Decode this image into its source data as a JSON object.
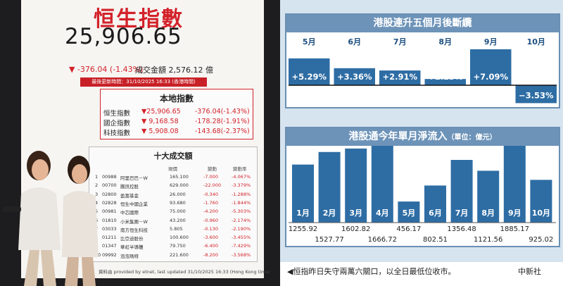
{
  "photo": {
    "board": {
      "title": "恒生指數",
      "value": "25,906.65",
      "change": "▼ -376.04 (-1.43%)",
      "turnover": "成交金額 2,576.12 億",
      "updated": "最後更新時間：31/10/2025 16:33 (香港時間)",
      "local_title": "本地指數",
      "local": [
        {
          "name": "恒生指數",
          "value": "▼25,906.65",
          "change": "-376.04(-1.43%)"
        },
        {
          "name": "國企指數",
          "value": "▼ 9,168.58",
          "change": "-178.28(-1.91%)"
        },
        {
          "name": "科技指數",
          "value": "▼ 5,908.08",
          "change": "-143.68(-2.37%)"
        }
      ],
      "top10_title": "十大成交額",
      "top10_cols": [
        "現價",
        "變動",
        "變動率"
      ],
      "top10": [
        {
          "no": "1",
          "code": "00988",
          "name": "阿里巴巴－W",
          "price": "165.100",
          "chg": "-7.000",
          "pct": "-4.067%"
        },
        {
          "no": "2",
          "code": "00700",
          "name": "騰訊控股",
          "price": "629.000",
          "chg": "-22.000",
          "pct": "-3.379%"
        },
        {
          "no": "3",
          "code": "02800",
          "name": "盈富基金",
          "price": "26.000",
          "chg": "-0.340",
          "pct": "-1.288%"
        },
        {
          "no": "4",
          "code": "02828",
          "name": "恒生中國企業",
          "price": "93.680",
          "chg": "-1.760",
          "pct": "-1.844%"
        },
        {
          "no": "5",
          "code": "00981",
          "name": "中芯國際",
          "price": "75.000",
          "chg": "-4.200",
          "pct": "-5.303%"
        },
        {
          "no": "6",
          "code": "01810",
          "name": "小米集團－W",
          "price": "43.200",
          "chg": "-0.960",
          "pct": "-2.174%"
        },
        {
          "no": "7",
          "code": "03033",
          "name": "南方恒生科技",
          "price": "5.805",
          "chg": "-0.130",
          "pct": "-2.190%"
        },
        {
          "no": "8",
          "code": "01211",
          "name": "比亞迪股份",
          "price": "100.600",
          "chg": "-3.600",
          "pct": "-3.455%"
        },
        {
          "no": "9",
          "code": "01347",
          "name": "華虹半導體",
          "price": "79.750",
          "chg": "-6.400",
          "pct": "-7.429%"
        },
        {
          "no": "10",
          "code": "09992",
          "name": "泡泡瑪特",
          "price": "221.600",
          "chg": "-8.200",
          "pct": "-3.568%"
        }
      ],
      "credit": "資料由 provided by etnet, last updated 31/10/2025 16:33 (Hong Kong time)"
    }
  },
  "colors": {
    "bar": "#2e6da4",
    "title_bg": "#6d93b8",
    "panel_bg": "#d6e4ef",
    "board_red": "#d3222a"
  },
  "chart_data": [
    {
      "type": "bar",
      "title": "港股連升五個月後斷纜",
      "categories": [
        "5月",
        "6月",
        "7月",
        "8月",
        "9月",
        "10月"
      ],
      "values": [
        5.29,
        3.36,
        2.91,
        1.23,
        7.09,
        -3.53
      ],
      "labels": [
        "+5.29%",
        "+3.36%",
        "+2.91%",
        "+1.23%",
        "+7.09%",
        "−3.53%"
      ],
      "unit": "%",
      "grid": false
    },
    {
      "type": "bar",
      "title": "港股通今年單月淨流入",
      "title_unit": "（單位：億元）",
      "categories": [
        "1月",
        "2月",
        "3月",
        "4月",
        "5月",
        "6月",
        "7月",
        "8月",
        "9月",
        "10月"
      ],
      "values": [
        1255.92,
        1527.77,
        1602.82,
        1666.72,
        456.17,
        802.51,
        1356.48,
        1121.56,
        1885.17,
        925.02
      ],
      "labels": [
        "1255.92",
        "1527.77",
        "1602.82",
        "1666.72",
        "456.17",
        "802.51",
        "1356.48",
        "1121.56",
        "1885.17",
        "925.02"
      ],
      "unit": "億元",
      "grid": false
    }
  ],
  "caption": {
    "text": "◀恒指昨日失守兩萬六關口，以全日最低位收市。",
    "source": "中新社"
  }
}
